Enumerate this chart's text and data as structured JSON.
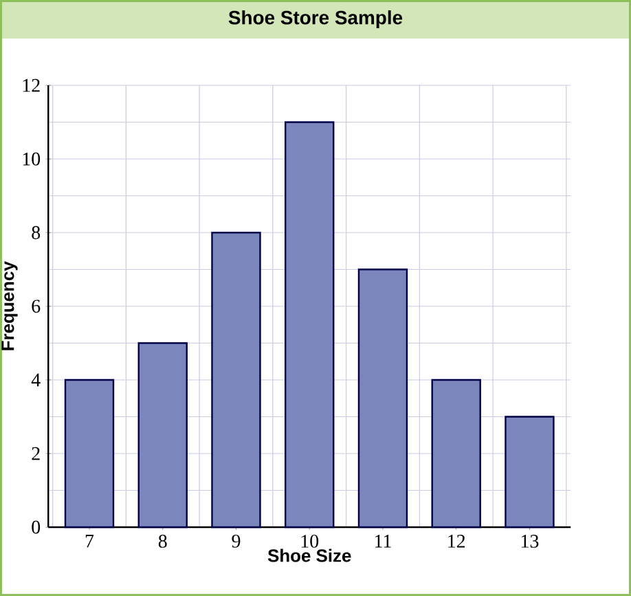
{
  "chart_data": {
    "type": "bar",
    "title": "Shoe Store Sample",
    "xlabel": "Shoe Size",
    "ylabel": "Frequency",
    "categories": [
      "7",
      "8",
      "9",
      "10",
      "11",
      "12",
      "13"
    ],
    "values": [
      4,
      5,
      8,
      11,
      7,
      4,
      3
    ],
    "color": "#7b86bd",
    "ylim": [
      0,
      12
    ],
    "yticks": [
      0,
      2,
      4,
      6,
      8,
      10,
      12
    ],
    "grid": true
  }
}
